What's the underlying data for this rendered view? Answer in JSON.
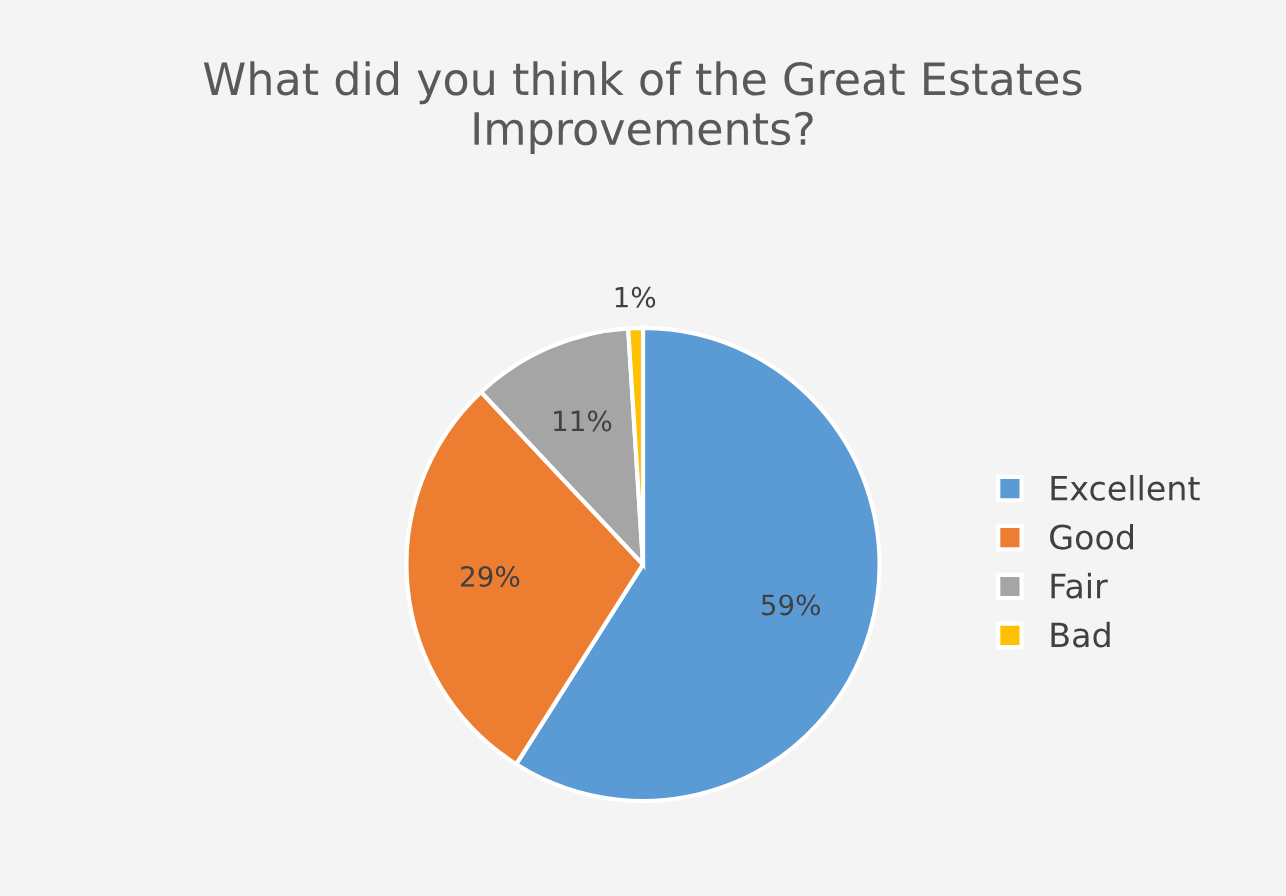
{
  "chart_data": {
    "type": "pie",
    "title": "What did you think of the Great Estates Improvements?",
    "categories": [
      "Excellent",
      "Good",
      "Fair",
      "Bad"
    ],
    "values": [
      59,
      29,
      11,
      1
    ],
    "colors": [
      "#5b9bd5",
      "#ed7d31",
      "#a5a5a5",
      "#ffc000"
    ],
    "value_labels": [
      "59%",
      "29%",
      "11%",
      "1%"
    ],
    "legend": "right"
  }
}
